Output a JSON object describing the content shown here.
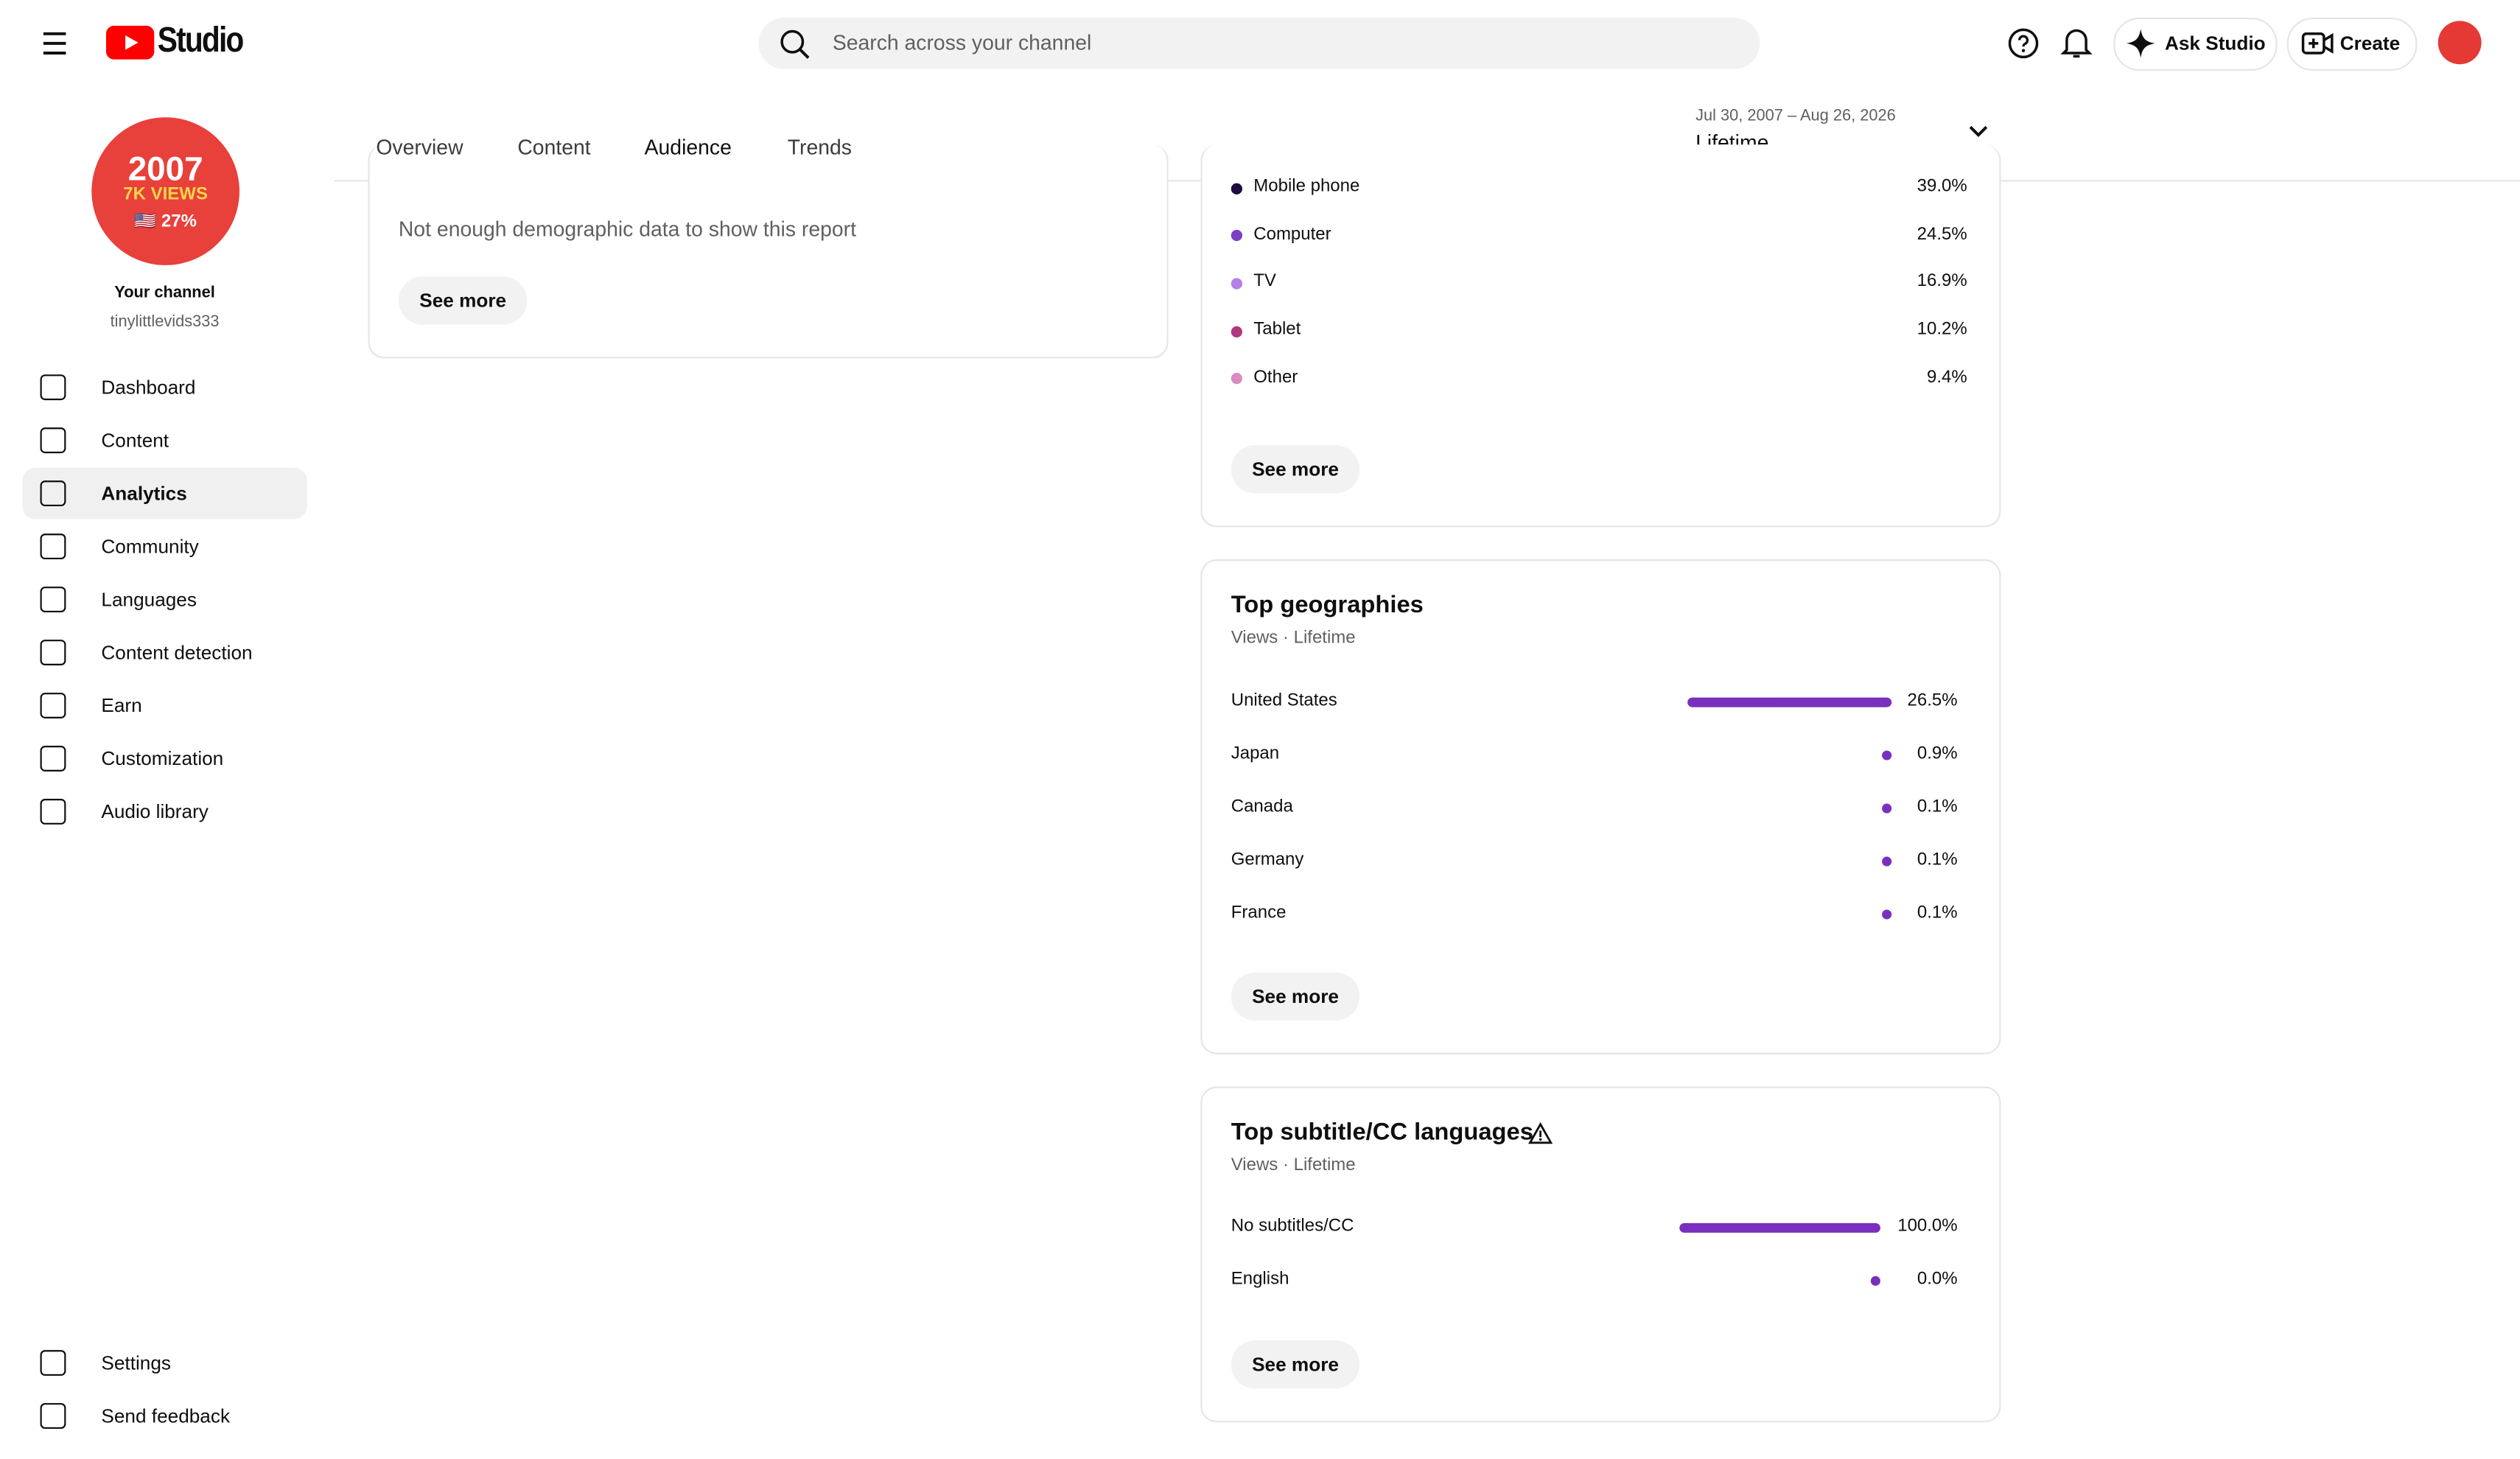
{
  "header": {
    "logo": "Studio",
    "search_placeholder": "Search across your channel",
    "ask": "Ask Studio",
    "create": "Create"
  },
  "sidebar": {
    "avatar": {
      "line1": "2007",
      "line2": "7K VIEWS",
      "line3": "🇺🇸 27%"
    },
    "channel_label": "Your channel",
    "handle": "tinylittlevids333",
    "nav": [
      "Dashboard",
      "Content",
      "Analytics",
      "Community",
      "Languages",
      "Content detection",
      "Earn",
      "Customization",
      "Audio library"
    ],
    "footer": [
      "Settings",
      "Send feedback"
    ]
  },
  "tabs": [
    "Overview",
    "Content",
    "Audience",
    "Trends"
  ],
  "date_range": {
    "dates": "Jul 30, 2007 – Aug 26, 2026",
    "period": "Lifetime"
  },
  "demographics": {
    "message": "Not enough demographic data to show this report",
    "button": "See more"
  },
  "devices": {
    "rows": [
      {
        "name": "Mobile phone",
        "color": "#1f0b3d",
        "value": "39.0%"
      },
      {
        "name": "Computer",
        "color": "#7a3fc2",
        "value": "24.5%"
      },
      {
        "name": "TV",
        "color": "#b67ee6",
        "value": "16.9%"
      },
      {
        "name": "Tablet",
        "color": "#b0397d",
        "value": "10.2%"
      },
      {
        "name": "Other",
        "color": "#d98cbf",
        "value": "9.4%"
      }
    ],
    "button": "See more"
  },
  "geographies": {
    "title": "Top geographies",
    "subtitle": "Views · Lifetime",
    "bar_color": "#7b2fbe",
    "rows": [
      {
        "name": "United States",
        "value": 26.5,
        "label": "26.5%"
      },
      {
        "name": "Japan",
        "value": 0.9,
        "label": "0.9%"
      },
      {
        "name": "Canada",
        "value": 0.1,
        "label": "0.1%"
      },
      {
        "name": "Germany",
        "value": 0.1,
        "label": "0.1%"
      },
      {
        "name": "France",
        "value": 0.1,
        "label": "0.1%"
      }
    ],
    "button": "See more"
  },
  "subtitles": {
    "title": "Top subtitle/CC languages",
    "subtitle": "Views · Lifetime",
    "bar_color": "#7b2fbe",
    "rows": [
      {
        "name": "No subtitles/CC",
        "value": 100.0,
        "label": "100.0%"
      },
      {
        "name": "English",
        "value": 0.0,
        "label": "0.0%"
      }
    ],
    "button": "See more"
  }
}
